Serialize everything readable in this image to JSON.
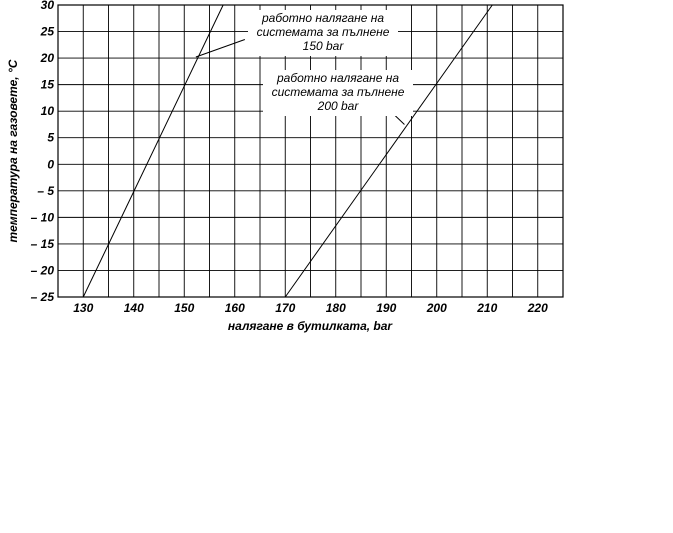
{
  "chart_data": {
    "type": "line",
    "title": "",
    "xlabel": "налягане в бутилката, bar",
    "ylabel": "температура на газовете, °C",
    "xlim": [
      125,
      225
    ],
    "ylim": [
      -25,
      30
    ],
    "x_ticks": [
      130,
      140,
      150,
      160,
      170,
      180,
      190,
      200,
      210,
      220
    ],
    "y_ticks": [
      30,
      25,
      20,
      15,
      10,
      5,
      0,
      -5,
      -10,
      -15,
      -20,
      -25
    ],
    "y_tick_labels": [
      "30",
      "25",
      "20",
      "15",
      "10",
      "5",
      "0",
      "– 5",
      "– 10",
      "– 15",
      "– 20",
      "– 25"
    ],
    "grid": true,
    "series": [
      {
        "id": "s150",
        "color": "#000000",
        "points": [
          {
            "x": 130,
            "y": -25
          },
          {
            "x": 157.7,
            "y": 30
          }
        ]
      },
      {
        "id": "s200",
        "color": "#000000",
        "points": [
          {
            "x": 170,
            "y": -25
          },
          {
            "x": 211,
            "y": 30
          }
        ]
      }
    ],
    "annotations": [
      {
        "id": "anno-150",
        "lines": [
          "работно налягане на",
          "системата за пълнене",
          "150 bar"
        ],
        "leader": [
          {
            "x": 152.3,
            "y": 20.2
          },
          {
            "x": 162,
            "y": 23.5
          }
        ]
      },
      {
        "id": "anno-200",
        "lines": [
          "работно налягане на",
          "системата за пълнене",
          "200 bar"
        ],
        "leader": [
          {
            "x": 193.6,
            "y": 7.5
          },
          {
            "x": 187,
            "y": 13.5
          }
        ]
      }
    ]
  }
}
